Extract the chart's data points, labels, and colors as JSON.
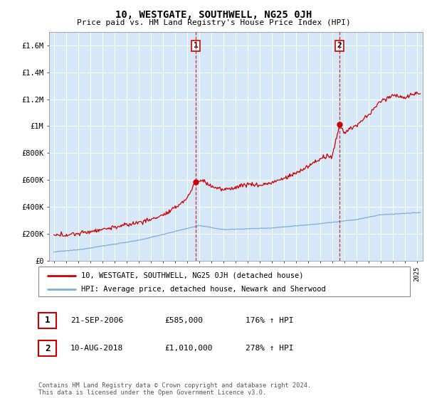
{
  "title": "10, WESTGATE, SOUTHWELL, NG25 0JH",
  "subtitle": "Price paid vs. HM Land Registry's House Price Index (HPI)",
  "ylim": [
    0,
    1700000
  ],
  "yticks": [
    0,
    200000,
    400000,
    600000,
    800000,
    1000000,
    1200000,
    1400000,
    1600000
  ],
  "ytick_labels": [
    "£0",
    "£200K",
    "£400K",
    "£600K",
    "£800K",
    "£1M",
    "£1.2M",
    "£1.4M",
    "£1.6M"
  ],
  "xlim_start": 1994.6,
  "xlim_end": 2025.5,
  "vline1_x": 2006.72,
  "vline2_x": 2018.61,
  "vline1_label": "1",
  "vline2_label": "2",
  "sale1_price": 585000,
  "sale2_price": 1010000,
  "red_line_color": "#cc0000",
  "blue_line_color": "#7bafd4",
  "legend_label_red": "10, WESTGATE, SOUTHWELL, NG25 0JH (detached house)",
  "legend_label_blue": "HPI: Average price, detached house, Newark and Sherwood",
  "annotation1_num": "1",
  "annotation1_date": "21-SEP-2006",
  "annotation1_price": "£585,000",
  "annotation1_hpi": "176% ↑ HPI",
  "annotation2_num": "2",
  "annotation2_date": "10-AUG-2018",
  "annotation2_price": "£1,010,000",
  "annotation2_hpi": "278% ↑ HPI",
  "footer": "Contains HM Land Registry data © Crown copyright and database right 2024.\nThis data is licensed under the Open Government Licence v3.0.",
  "plot_bg_color": "#d6e8f7",
  "fig_bg_color": "#ffffff"
}
